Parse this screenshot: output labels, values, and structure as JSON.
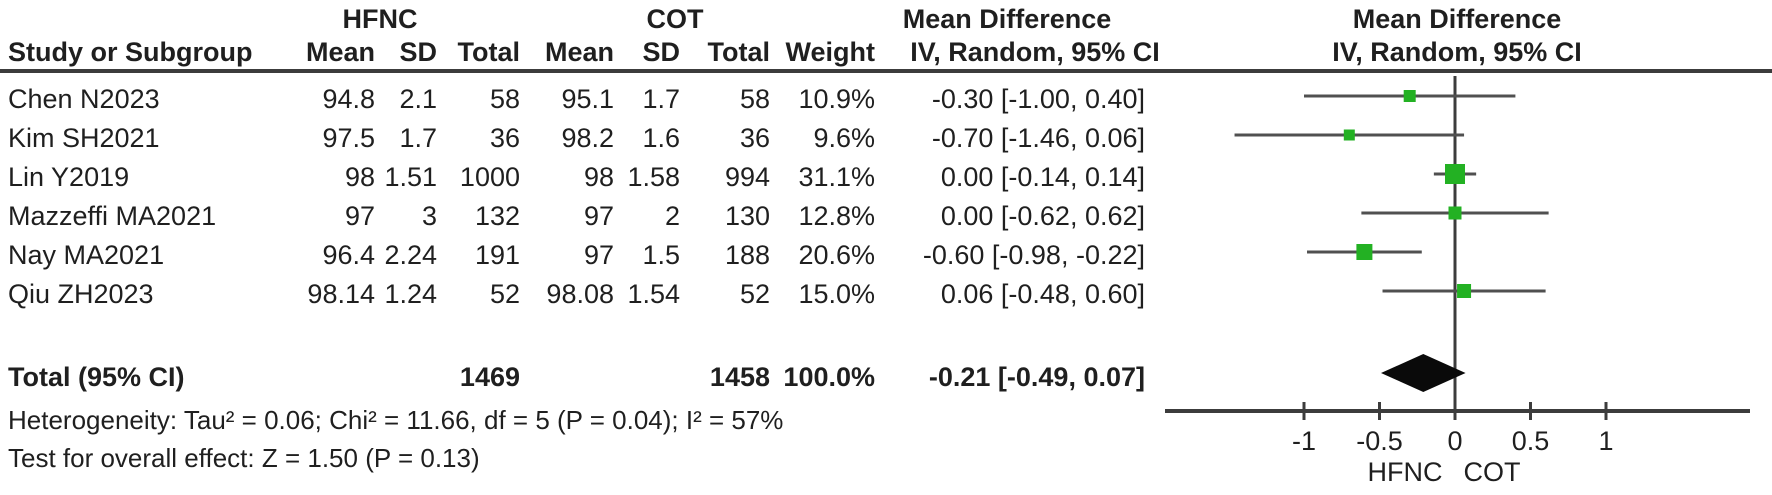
{
  "header": {
    "group1": "HFNC",
    "group2": "COT",
    "col_study": "Study or Subgroup",
    "col_mean1": "Mean",
    "col_sd1": "SD",
    "col_total1": "Total",
    "col_mean2": "Mean",
    "col_sd2": "SD",
    "col_total2": "Total",
    "col_weight": "Weight",
    "md_title1": "Mean Difference",
    "md_title2": "Mean Difference",
    "md_subtitle1": "IV, Random, 95% CI",
    "md_subtitle2": "IV, Random, 95% CI"
  },
  "studies": [
    {
      "name": "Chen N2023",
      "mean1": "94.8",
      "sd1": "2.1",
      "total1": "58",
      "mean2": "95.1",
      "sd2": "1.7",
      "total2": "58",
      "weight": "10.9%",
      "ci_text": "-0.30 [-1.00, 0.40]"
    },
    {
      "name": "Kim SH2021",
      "mean1": "97.5",
      "sd1": "1.7",
      "total1": "36",
      "mean2": "98.2",
      "sd2": "1.6",
      "total2": "36",
      "weight": "9.6%",
      "ci_text": "-0.70 [-1.46, 0.06]"
    },
    {
      "name": "Lin Y2019",
      "mean1": "98",
      "sd1": "1.51",
      "total1": "1000",
      "mean2": "98",
      "sd2": "1.58",
      "total2": "994",
      "weight": "31.1%",
      "ci_text": "0.00 [-0.14, 0.14]"
    },
    {
      "name": "Mazzeffi MA2021",
      "mean1": "97",
      "sd1": "3",
      "total1": "132",
      "mean2": "97",
      "sd2": "2",
      "total2": "130",
      "weight": "12.8%",
      "ci_text": "0.00 [-0.62, 0.62]"
    },
    {
      "name": "Nay MA2021",
      "mean1": "96.4",
      "sd1": "2.24",
      "total1": "191",
      "mean2": "97",
      "sd2": "1.5",
      "total2": "188",
      "weight": "20.6%",
      "ci_text": "-0.60 [-0.98, -0.22]"
    },
    {
      "name": "Qiu ZH2023",
      "mean1": "98.14",
      "sd1": "1.24",
      "total1": "52",
      "mean2": "98.08",
      "sd2": "1.54",
      "total2": "52",
      "weight": "15.0%",
      "ci_text": "0.06 [-0.48, 0.60]"
    }
  ],
  "total": {
    "label": "Total (95% CI)",
    "total1": "1469",
    "total2": "1458",
    "weight": "100.0%",
    "ci_text": "-0.21 [-0.49, 0.07]"
  },
  "footer": {
    "heterogeneity": "Heterogeneity: Tau² = 0.06; Chi² = 11.66, df = 5 (P = 0.04); I² = 57%",
    "overall_effect": "Test for overall effect: Z = 1.50 (P = 0.13)"
  },
  "chart_data": {
    "type": "scatter",
    "subtype": "forest-plot",
    "title": "Mean Difference",
    "effect_model": "IV, Random, 95% CI",
    "studies": [
      {
        "name": "Chen N2023",
        "md": -0.3,
        "ci_low": -1.0,
        "ci_high": 0.4,
        "weight_pct": 10.9
      },
      {
        "name": "Kim SH2021",
        "md": -0.7,
        "ci_low": -1.46,
        "ci_high": 0.06,
        "weight_pct": 9.6
      },
      {
        "name": "Lin Y2019",
        "md": 0.0,
        "ci_low": -0.14,
        "ci_high": 0.14,
        "weight_pct": 31.1
      },
      {
        "name": "Mazzeffi MA2021",
        "md": 0.0,
        "ci_low": -0.62,
        "ci_high": 0.62,
        "weight_pct": 12.8
      },
      {
        "name": "Nay MA2021",
        "md": -0.6,
        "ci_low": -0.98,
        "ci_high": -0.22,
        "weight_pct": 20.6
      },
      {
        "name": "Qiu ZH2023",
        "md": 0.06,
        "ci_low": -0.48,
        "ci_high": 0.6,
        "weight_pct": 15.0
      }
    ],
    "total": {
      "md": -0.21,
      "ci_low": -0.49,
      "ci_high": 0.07,
      "weight_pct": 100.0
    },
    "axis": {
      "ticks": [
        {
          "v": -1,
          "label": "-1"
        },
        {
          "v": -0.5,
          "label": "-0.5"
        },
        {
          "v": 0,
          "label": "0"
        },
        {
          "v": 0.5,
          "label": "0.5"
        },
        {
          "v": 1,
          "label": "1"
        }
      ],
      "xlim": [
        -1.93,
        1.95
      ],
      "label_left": "HFNC",
      "label_right": "COT",
      "grid": false
    },
    "colors": {
      "marker_green": "#23B123",
      "ci_line_gray": "#505050",
      "axis_dark": "#3c3c3c",
      "diamond_black": "#0a0a0a"
    }
  }
}
